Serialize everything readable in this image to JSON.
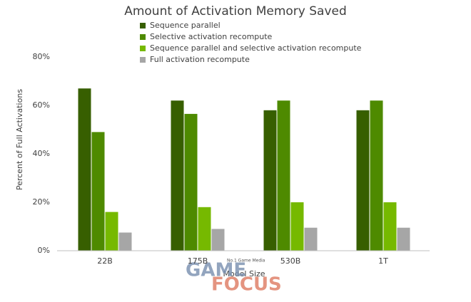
{
  "chart_data": {
    "type": "bar",
    "title": "Amount of Activation Memory Saved",
    "x_label": "Model Size",
    "y_label": "Percent of Full Activations",
    "categories": [
      "22B",
      "175B",
      "530B",
      "1T"
    ],
    "series": [
      {
        "name": "Sequence parallel",
        "color": "#375f00",
        "values": [
          67,
          62,
          58,
          58
        ]
      },
      {
        "name": "Selective activation recompute",
        "color": "#4e8a00",
        "values": [
          49,
          56.5,
          62,
          62
        ]
      },
      {
        "name": "Sequence parallel and selective activation recompute",
        "color": "#76b900",
        "values": [
          16,
          18,
          20,
          20
        ]
      },
      {
        "name": "Full activation recompute",
        "color": "#a6a6a6",
        "values": [
          7.5,
          9,
          9.5,
          9.5
        ]
      }
    ],
    "ylim": [
      0,
      80
    ],
    "yticks": [
      {
        "value": 0,
        "label": "0%"
      },
      {
        "value": 20,
        "label": "20%"
      },
      {
        "value": 40,
        "label": "40%"
      },
      {
        "value": 60,
        "label": "60%"
      },
      {
        "value": 80,
        "label": "80%"
      }
    ],
    "grid": false,
    "legend_position": "top"
  },
  "watermark": {
    "tagline": "No.1 Game Media",
    "line1": "GAME",
    "line2": "FOCUS"
  }
}
